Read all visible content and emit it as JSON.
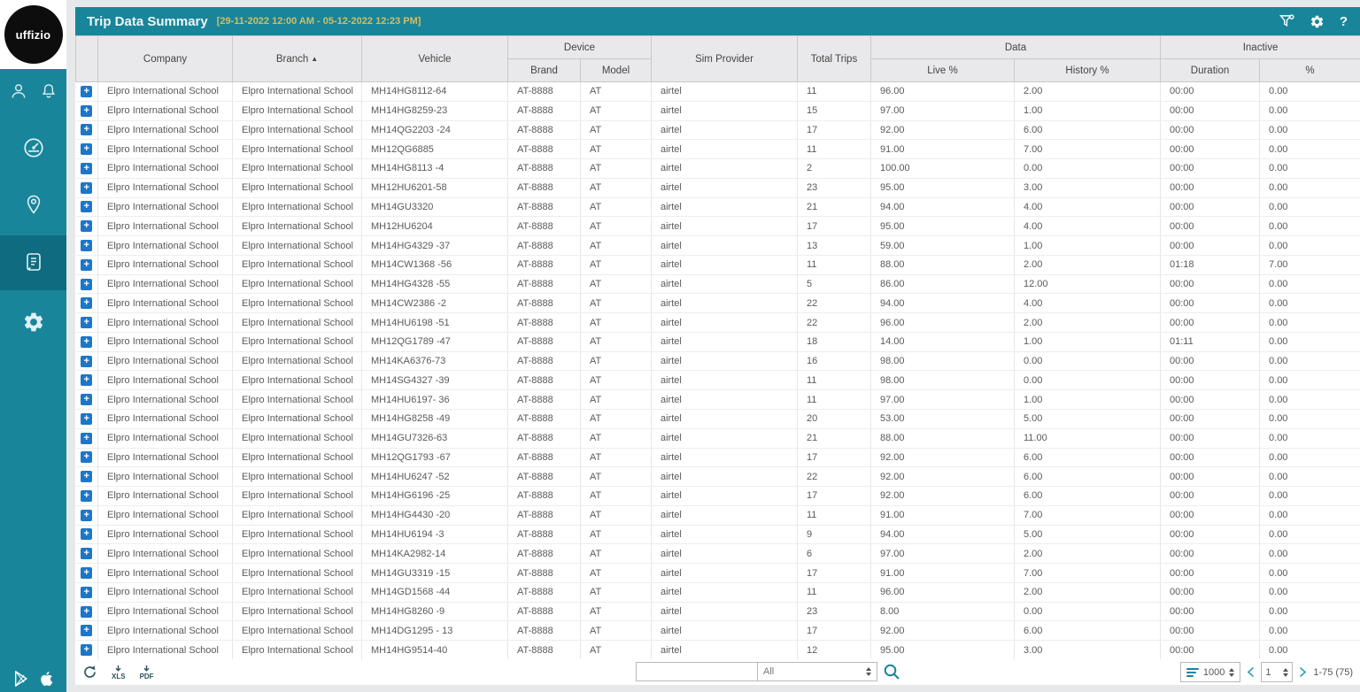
{
  "titlebar": {
    "title": "Trip Data Summary",
    "date_range": "[29-11-2022 12:00 AM - 05-12-2022 12:23 PM]",
    "accent_color": "#18859a",
    "date_color": "#d5be62",
    "icons": [
      "filter-icon",
      "settings-icon",
      "help-icon"
    ],
    "help_glyph": "?"
  },
  "sidebar": {
    "logo_text": "uffizio",
    "top_icons": [
      "user-icon",
      "notifications-bell-icon"
    ],
    "nav_items": [
      {
        "name": "dashboard",
        "icon": "dashboard-gauge-icon",
        "active": false
      },
      {
        "name": "tracking",
        "icon": "location-pin-icon",
        "active": false
      },
      {
        "name": "reports",
        "icon": "report-document-icon",
        "active": true
      },
      {
        "name": "settings",
        "icon": "gear-icon",
        "active": false
      }
    ],
    "store_icons": [
      "google-play-icon",
      "apple-icon"
    ]
  },
  "table": {
    "expand_symbol": "+",
    "columns": {
      "company": "Company",
      "branch": "Branch",
      "sort_indicator": "▲",
      "vehicle": "Vehicle",
      "device": "Device",
      "brand": "Brand",
      "model": "Model",
      "sim_provider": "Sim Provider",
      "total_trips": "Total Trips",
      "data": "Data",
      "live": "Live %",
      "history": "History %",
      "inactive": "Inactive",
      "duration": "Duration",
      "pct": "%"
    },
    "defaults": {
      "company": "Elpro International School",
      "branch": "Elpro International School",
      "brand": "AT-8888",
      "model": "AT",
      "sim_provider": "airtel"
    },
    "rows": [
      {
        "vehicle": "MH14HG8112-64",
        "total_trips": "11",
        "live": "96.00",
        "history": "2.00",
        "duration": "00:00",
        "inactive_pct": "0.00"
      },
      {
        "vehicle": "MH14HG8259-23",
        "total_trips": "15",
        "live": "97.00",
        "history": "1.00",
        "duration": "00:00",
        "inactive_pct": "0.00"
      },
      {
        "vehicle": "MH14QG2203 -24",
        "total_trips": "17",
        "live": "92.00",
        "history": "6.00",
        "duration": "00:00",
        "inactive_pct": "0.00"
      },
      {
        "vehicle": "MH12QG6885",
        "total_trips": "11",
        "live": "91.00",
        "history": "7.00",
        "duration": "00:00",
        "inactive_pct": "0.00"
      },
      {
        "vehicle": "MH14HG8113 -4",
        "total_trips": "2",
        "live": "100.00",
        "history": "0.00",
        "duration": "00:00",
        "inactive_pct": "0.00"
      },
      {
        "vehicle": "MH12HU6201-58",
        "total_trips": "23",
        "live": "95.00",
        "history": "3.00",
        "duration": "00:00",
        "inactive_pct": "0.00"
      },
      {
        "vehicle": "MH14GU3320",
        "total_trips": "21",
        "live": "94.00",
        "history": "4.00",
        "duration": "00:00",
        "inactive_pct": "0.00"
      },
      {
        "vehicle": "MH12HU6204",
        "total_trips": "17",
        "live": "95.00",
        "history": "4.00",
        "duration": "00:00",
        "inactive_pct": "0.00"
      },
      {
        "vehicle": "MH14HG4329 -37",
        "total_trips": "13",
        "live": "59.00",
        "history": "1.00",
        "duration": "00:00",
        "inactive_pct": "0.00"
      },
      {
        "vehicle": "MH14CW1368 -56",
        "total_trips": "11",
        "live": "88.00",
        "history": "2.00",
        "duration": "01:18",
        "inactive_pct": "7.00"
      },
      {
        "vehicle": "MH14HG4328 -55",
        "total_trips": "5",
        "live": "86.00",
        "history": "12.00",
        "duration": "00:00",
        "inactive_pct": "0.00"
      },
      {
        "vehicle": "MH14CW2386 -2",
        "total_trips": "22",
        "live": "94.00",
        "history": "4.00",
        "duration": "00:00",
        "inactive_pct": "0.00"
      },
      {
        "vehicle": "MH14HU6198 -51",
        "total_trips": "22",
        "live": "96.00",
        "history": "2.00",
        "duration": "00:00",
        "inactive_pct": "0.00"
      },
      {
        "vehicle": "MH12QG1789 -47",
        "total_trips": "18",
        "live": "14.00",
        "history": "1.00",
        "duration": "01:11",
        "inactive_pct": "0.00"
      },
      {
        "vehicle": "MH14KA6376-73",
        "total_trips": "16",
        "live": "98.00",
        "history": "0.00",
        "duration": "00:00",
        "inactive_pct": "0.00"
      },
      {
        "vehicle": "MH14SG4327 -39",
        "total_trips": "11",
        "live": "98.00",
        "history": "0.00",
        "duration": "00:00",
        "inactive_pct": "0.00"
      },
      {
        "vehicle": "MH14HU6197- 36",
        "total_trips": "11",
        "live": "97.00",
        "history": "1.00",
        "duration": "00:00",
        "inactive_pct": "0.00"
      },
      {
        "vehicle": "MH14HG8258 -49",
        "total_trips": "20",
        "live": "53.00",
        "history": "5.00",
        "duration": "00:00",
        "inactive_pct": "0.00"
      },
      {
        "vehicle": "MH14GU7326-63",
        "total_trips": "21",
        "live": "88.00",
        "history": "11.00",
        "duration": "00:00",
        "inactive_pct": "0.00"
      },
      {
        "vehicle": "MH12QG1793 -67",
        "total_trips": "17",
        "live": "92.00",
        "history": "6.00",
        "duration": "00:00",
        "inactive_pct": "0.00"
      },
      {
        "vehicle": "MH14HU6247 -52",
        "total_trips": "22",
        "live": "92.00",
        "history": "6.00",
        "duration": "00:00",
        "inactive_pct": "0.00"
      },
      {
        "vehicle": "MH14HG6196 -25",
        "total_trips": "17",
        "live": "92.00",
        "history": "6.00",
        "duration": "00:00",
        "inactive_pct": "0.00"
      },
      {
        "vehicle": "MH14HG4430 -20",
        "total_trips": "11",
        "live": "91.00",
        "history": "7.00",
        "duration": "00:00",
        "inactive_pct": "0.00"
      },
      {
        "vehicle": "MH14HU6194 -3",
        "total_trips": "9",
        "live": "94.00",
        "history": "5.00",
        "duration": "00:00",
        "inactive_pct": "0.00"
      },
      {
        "vehicle": "MH14KA2982-14",
        "total_trips": "6",
        "live": "97.00",
        "history": "2.00",
        "duration": "00:00",
        "inactive_pct": "0.00"
      },
      {
        "vehicle": "MH14GU3319 -15",
        "total_trips": "17",
        "live": "91.00",
        "history": "7.00",
        "duration": "00:00",
        "inactive_pct": "0.00"
      },
      {
        "vehicle": "MH14GD1568 -44",
        "total_trips": "11",
        "live": "96.00",
        "history": "2.00",
        "duration": "00:00",
        "inactive_pct": "0.00"
      },
      {
        "vehicle": "MH14HG8260 -9",
        "total_trips": "23",
        "live": "8.00",
        "history": "0.00",
        "duration": "00:00",
        "inactive_pct": "0.00"
      },
      {
        "vehicle": "MH14DG1295 - 13",
        "total_trips": "17",
        "live": "92.00",
        "history": "6.00",
        "duration": "00:00",
        "inactive_pct": "0.00"
      },
      {
        "vehicle": "MH14HG9514-40",
        "total_trips": "12",
        "live": "95.00",
        "history": "3.00",
        "duration": "00:00",
        "inactive_pct": "0.00"
      }
    ]
  },
  "footer": {
    "refresh_icon": "refresh-icon",
    "export_xls_label": "XLS",
    "export_pdf_label": "PDF",
    "search_value": "",
    "search_column_selected": "All",
    "search_icon": "search-icon",
    "page_size": "1000",
    "page_number": "1",
    "range_label": "1-75 (75)"
  }
}
